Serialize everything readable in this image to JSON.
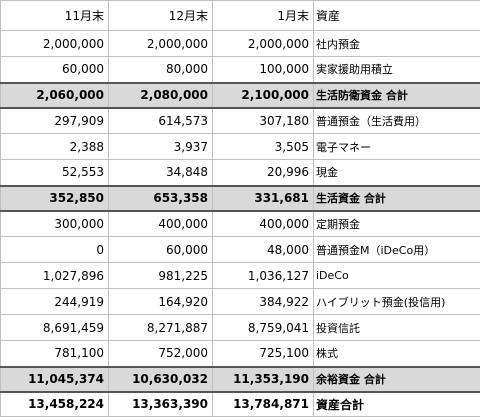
{
  "header": {
    "col1": "11月末",
    "col2": "12月末",
    "col3": "1月末",
    "col4": "資産"
  },
  "rows": [
    {
      "type": "item",
      "v1": "2,000,000",
      "v2": "2,000,000",
      "v3": "2,000,000",
      "label": "社内預金"
    },
    {
      "type": "item",
      "v1": "60,000",
      "v2": "80,000",
      "v3": "100,000",
      "label": "実家援助用積立"
    },
    {
      "type": "subtotal",
      "v1": "2,060,000",
      "v2": "2,080,000",
      "v3": "2,100,000",
      "label": "生活防衛資金 合計"
    },
    {
      "type": "item",
      "v1": "297,909",
      "v2": "614,573",
      "v3": "307,180",
      "label": "普通預金（生活費用）"
    },
    {
      "type": "item",
      "v1": "2,388",
      "v2": "3,937",
      "v3": "3,505",
      "label": "電子マネー"
    },
    {
      "type": "item",
      "v1": "52,553",
      "v2": "34,848",
      "v3": "20,996",
      "label": "現金"
    },
    {
      "type": "subtotal",
      "v1": "352,850",
      "v2": "653,358",
      "v3": "331,681",
      "label": "生活資金 合計"
    },
    {
      "type": "item",
      "v1": "300,000",
      "v2": "400,000",
      "v3": "400,000",
      "label": "定期預金"
    },
    {
      "type": "item",
      "v1": "0",
      "v2": "60,000",
      "v3": "48,000",
      "label": "普通預金M（iDeCo用）"
    },
    {
      "type": "item",
      "v1": "1,027,896",
      "v2": "981,225",
      "v3": "1,036,127",
      "label": "iDeCo"
    },
    {
      "type": "item",
      "v1": "244,919",
      "v2": "164,920",
      "v3": "384,922",
      "label": "ハイブリット預金(投信用)"
    },
    {
      "type": "item",
      "v1": "8,691,459",
      "v2": "8,271,887",
      "v3": "8,759,041",
      "label": "投資信託"
    },
    {
      "type": "item",
      "v1": "781,100",
      "v2": "752,000",
      "v3": "725,100",
      "label": "株式"
    },
    {
      "type": "subtotal",
      "v1": "11,045,374",
      "v2": "10,630,032",
      "v3": "11,353,190",
      "label": "余裕資金 合計"
    },
    {
      "type": "total",
      "v1": "13,458,224",
      "v2": "13,363,390",
      "v3": "13,784,871",
      "label": "資産合計"
    }
  ]
}
